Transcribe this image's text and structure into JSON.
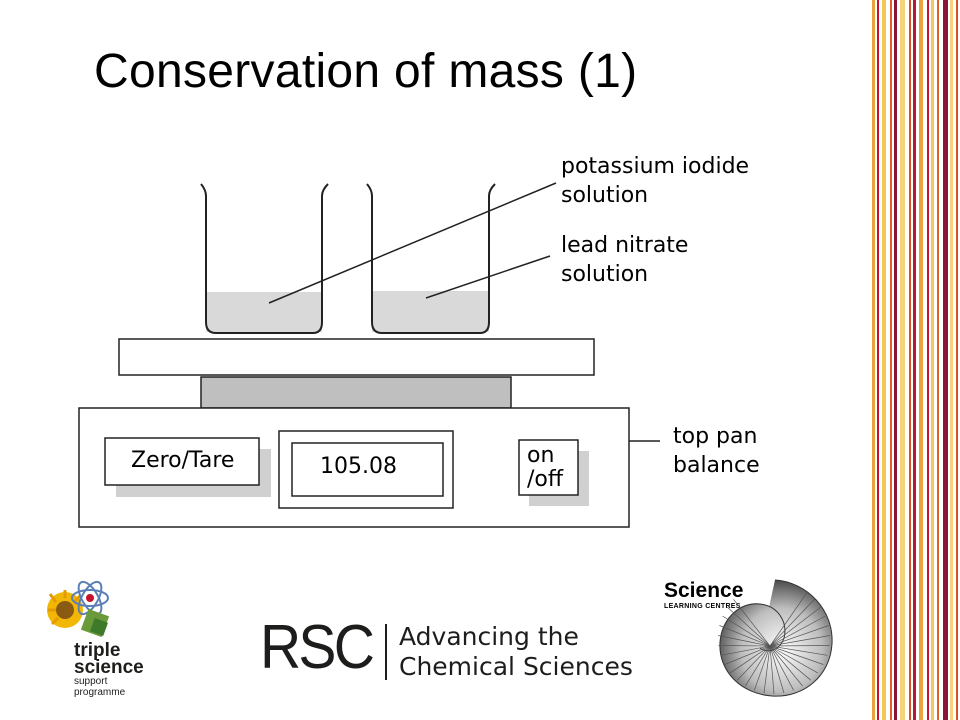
{
  "slide": {
    "title": "Conservation of mass (1)"
  },
  "diagram": {
    "labels": {
      "potassium_iodide_line1": "potassium iodide",
      "potassium_iodide_line2": "solution",
      "lead_nitrate_line1": "lead nitrate",
      "lead_nitrate_line2": "solution",
      "balance_line1": "top pan",
      "balance_line2": "balance"
    },
    "balance": {
      "zero_tare_label": "Zero/Tare",
      "display_value": "105.08",
      "power_label_line1": "on",
      "power_label_line2": "/off"
    },
    "colors": {
      "solution_fill": "#d9d9d9",
      "stand_fill": "#bfbfbf",
      "outline": "#222222"
    }
  },
  "logos": {
    "triple_science": {
      "line1": "triple",
      "line2": "science",
      "line3": "support",
      "line4": "programme"
    },
    "rsc": {
      "letters": "RSC",
      "tagline_line1": "Advancing the",
      "tagline_line2": "Chemical Sciences"
    },
    "science_learning_centres": {
      "line1": "Science",
      "line2": "LEARNING CENTRES"
    }
  },
  "decoration": {
    "stripe_colors": [
      "#e8a33d",
      "#c8102e",
      "#f2c75c",
      "#e35d26",
      "#8a1538",
      "#f6d27a",
      "#d94f2a",
      "#b31b34"
    ]
  }
}
